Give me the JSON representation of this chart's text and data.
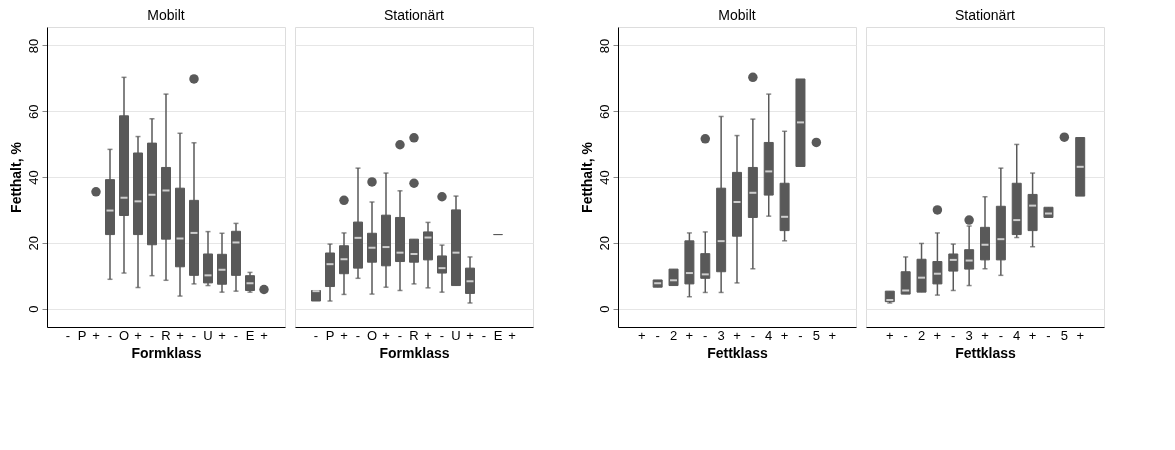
{
  "chart_data": [
    {
      "type": "box",
      "title": "Mobilt",
      "xlabel": "Formklass",
      "ylabel": "Fetthalt, %",
      "categories": [
        "-",
        "P",
        "+",
        "-",
        "O",
        "+",
        "-",
        "R",
        "+",
        "-",
        "U",
        "+",
        "-",
        "E",
        "+"
      ],
      "ylim": [
        -5.6,
        85.6
      ],
      "yticks": [
        0,
        20,
        40,
        60,
        80
      ],
      "grid": "y",
      "series": [
        {
          "type": "scatter",
          "color": "#595959",
          "values": [
            null,
            null,
            35.5,
            null,
            null,
            null,
            null,
            null,
            null,
            null,
            null,
            null,
            null,
            null,
            5.8
          ]
        },
        {
          "color": "#595959",
          "boxes": [
            null,
            null,
            null,
            {
              "low": 8.9,
              "q1": 22.5,
              "median": 29.8,
              "q3": 39.2,
              "high": 48.4
            },
            {
              "low": 10.8,
              "q1": 28.3,
              "median": 33.7,
              "q3": 58.6,
              "high": 70.3
            },
            {
              "low": 6.4,
              "q1": 22.5,
              "median": 32.6,
              "q3": 47.3,
              "high": 52.3
            },
            {
              "low": 10.0,
              "q1": 19.4,
              "median": 34.6,
              "q3": 50.3,
              "high": 57.7
            },
            {
              "low": 8.6,
              "q1": 21.1,
              "median": 35.9,
              "q3": 42.9,
              "high": 65.2
            },
            {
              "low": 3.8,
              "q1": 12.7,
              "median": 21.3,
              "q3": 36.6,
              "high": 53.3
            },
            {
              "low": 7.5,
              "q1": 10.1,
              "median": 23.0,
              "q3": 32.9,
              "high": 50.4,
              "outliers": [
                69.8
              ]
            },
            {
              "low": 7.0,
              "q1": 7.8,
              "median": 10.1,
              "q3": 16.6,
              "high": 23.4
            },
            {
              "low": 5.0,
              "q1": 7.4,
              "median": 11.8,
              "q3": 16.5,
              "high": 22.9
            },
            {
              "low": 5.3,
              "q1": 10.1,
              "median": 20.1,
              "q3": 23.5,
              "high": 25.9
            },
            {
              "low": 5.0,
              "q1": 5.5,
              "median": 7.7,
              "q3": 10.0,
              "high": 11.0
            },
            null
          ]
        }
      ]
    },
    {
      "type": "box",
      "title": "Stationärt",
      "xlabel": "Formklass",
      "categories": [
        "-",
        "P",
        "+",
        "-",
        "O",
        "+",
        "-",
        "R",
        "+",
        "-",
        "U",
        "+",
        "-",
        "E",
        "+"
      ],
      "ylim": [
        -5.6,
        85.6
      ],
      "yticks": [
        0,
        20,
        40,
        60,
        80
      ],
      "grid": "y",
      "tick_labels": "x",
      "series": [
        {
          "color": "#595959",
          "boxes": [
            {
              "low": 2.3,
              "q1": 2.3,
              "median": 5.3,
              "q3": 5.5,
              "high": 5.5
            },
            {
              "low": 2.3,
              "q1": 6.7,
              "median": 13.5,
              "q3": 16.9,
              "high": 19.6
            },
            {
              "low": 4.3,
              "q1": 10.6,
              "median": 15.0,
              "q3": 19.1,
              "high": 23.0,
              "outliers": [
                32.9
              ]
            },
            {
              "low": 9.2,
              "q1": 12.3,
              "median": 21.5,
              "q3": 26.3,
              "high": 42.7
            },
            {
              "low": 4.4,
              "q1": 14.1,
              "median": 18.5,
              "q3": 22.9,
              "high": 32.4,
              "outliers": [
                38.5
              ]
            },
            {
              "low": 6.5,
              "q1": 13.0,
              "median": 18.7,
              "q3": 28.4,
              "high": 41.2
            },
            {
              "low": 5.5,
              "q1": 14.3,
              "median": 17.0,
              "q3": 27.7,
              "high": 35.8,
              "outliers": [
                49.8
              ]
            },
            {
              "low": 7.5,
              "q1": 14.1,
              "median": 16.6,
              "q3": 21.1,
              "high": 21.1,
              "outliers": [
                51.9,
                38.1
              ]
            },
            {
              "low": 6.3,
              "q1": 14.8,
              "median": 21.6,
              "q3": 23.3,
              "high": 26.2
            },
            {
              "low": 5.0,
              "q1": 10.8,
              "median": 12.3,
              "q3": 16.0,
              "high": 19.3,
              "outliers": [
                34.0
              ]
            },
            {
              "low": 7.0,
              "q1": 7.0,
              "median": 17.0,
              "q3": 30.0,
              "high": 34.2
            },
            {
              "low": 1.7,
              "q1": 4.6,
              "median": 8.3,
              "q3": 12.3,
              "high": 15.7
            },
            null,
            {
              "low": 22.5,
              "q1": 22.5,
              "median": 22.5,
              "q3": 22.5,
              "high": 22.5
            },
            null
          ]
        }
      ]
    },
    {
      "type": "box",
      "title": "Mobilt",
      "xlabel": "Fettklass",
      "ylabel": "Fetthalt, %",
      "categories": [
        "+",
        "-",
        "2",
        "+",
        "-",
        "3",
        "+",
        "-",
        "4",
        "+",
        "-",
        "5",
        "+"
      ],
      "ylim": [
        -5.6,
        85.6
      ],
      "yticks": [
        0,
        20,
        40,
        60,
        80
      ],
      "grid": "y",
      "series": [
        {
          "type": "scatter",
          "color": "#595959",
          "values": [
            null,
            null,
            null,
            null,
            null,
            null,
            null,
            null,
            null,
            null,
            null,
            50.5,
            null
          ]
        },
        {
          "color": "#595959",
          "boxes": [
            null,
            {
              "low": 6.5,
              "q1": 6.5,
              "median": 7.7,
              "q3": 8.7,
              "high": 8.7
            },
            {
              "low": 7.0,
              "q1": 7.0,
              "median": 8.6,
              "q3": 12.0,
              "high": 12.0
            },
            {
              "low": 3.6,
              "q1": 7.5,
              "median": 10.8,
              "q3": 20.6,
              "high": 23.0
            },
            {
              "low": 4.9,
              "q1": 9.2,
              "median": 10.4,
              "q3": 16.7,
              "high": 23.3,
              "outliers": [
                51.6
              ]
            },
            {
              "low": 4.9,
              "q1": 11.2,
              "median": 20.5,
              "q3": 36.6,
              "high": 58.4
            },
            {
              "low": 7.8,
              "q1": 22.0,
              "median": 32.4,
              "q3": 41.4,
              "high": 52.6
            },
            {
              "low": 12.1,
              "q1": 27.7,
              "median": 35.2,
              "q3": 42.9,
              "high": 57.6,
              "outliers": [
                70.3
              ]
            },
            {
              "low": 28.1,
              "q1": 34.5,
              "median": 41.7,
              "q3": 50.5,
              "high": 65.2
            },
            {
              "low": 20.6,
              "q1": 23.7,
              "median": 27.9,
              "q3": 38.1,
              "high": 53.9
            },
            {
              "low": 43.2,
              "q1": 43.2,
              "median": 56.6,
              "q3": 69.8,
              "high": 69.8
            },
            null,
            null
          ]
        }
      ]
    },
    {
      "type": "box",
      "title": "Stationärt",
      "xlabel": "Fettklass",
      "categories": [
        "+",
        "-",
        "2",
        "+",
        "-",
        "3",
        "+",
        "-",
        "4",
        "+",
        "-",
        "5",
        "+"
      ],
      "ylim": [
        -5.6,
        85.6
      ],
      "yticks": [
        0,
        20,
        40,
        60,
        80
      ],
      "grid": "y",
      "tick_labels": "x",
      "series": [
        {
          "type": "scatter",
          "color": "#595959",
          "values": [
            null,
            null,
            null,
            null,
            null,
            null,
            null,
            null,
            null,
            null,
            null,
            52.1,
            null
          ]
        },
        {
          "color": "#595959",
          "boxes": [
            {
              "low": 1.7,
              "q1": 2.1,
              "median": 2.6,
              "q3": 5.3,
              "high": 5.3
            },
            {
              "low": 4.4,
              "q1": 4.4,
              "median": 5.5,
              "q3": 11.2,
              "high": 15.7
            },
            {
              "low": 5.0,
              "q1": 5.0,
              "median": 9.4,
              "q3": 15.0,
              "high": 19.8
            },
            {
              "low": 4.1,
              "q1": 7.5,
              "median": 10.6,
              "q3": 14.3,
              "high": 23.0,
              "outliers": [
                30.0
              ]
            },
            {
              "low": 5.5,
              "q1": 11.4,
              "median": 14.8,
              "q3": 16.6,
              "high": 19.6
            },
            {
              "low": 7.0,
              "q1": 12.0,
              "median": 14.6,
              "q3": 17.9,
              "high": 25.1,
              "outliers": [
                26.9
              ]
            },
            {
              "low": 12.1,
              "q1": 14.8,
              "median": 19.4,
              "q3": 24.7,
              "high": 34.0
            },
            {
              "low": 10.1,
              "q1": 14.8,
              "median": 21.1,
              "q3": 31.1,
              "high": 42.7
            },
            {
              "low": 21.6,
              "q1": 22.5,
              "median": 26.9,
              "q3": 38.1,
              "high": 49.9
            },
            {
              "low": 18.8,
              "q1": 23.7,
              "median": 31.3,
              "q3": 34.7,
              "high": 41.2
            },
            {
              "low": 27.7,
              "q1": 27.7,
              "median": 28.9,
              "q3": 30.8,
              "high": 30.8
            },
            null,
            {
              "low": 34.2,
              "q1": 34.2,
              "median": 43.1,
              "q3": 52.0,
              "high": 52.0
            }
          ]
        }
      ]
    }
  ]
}
